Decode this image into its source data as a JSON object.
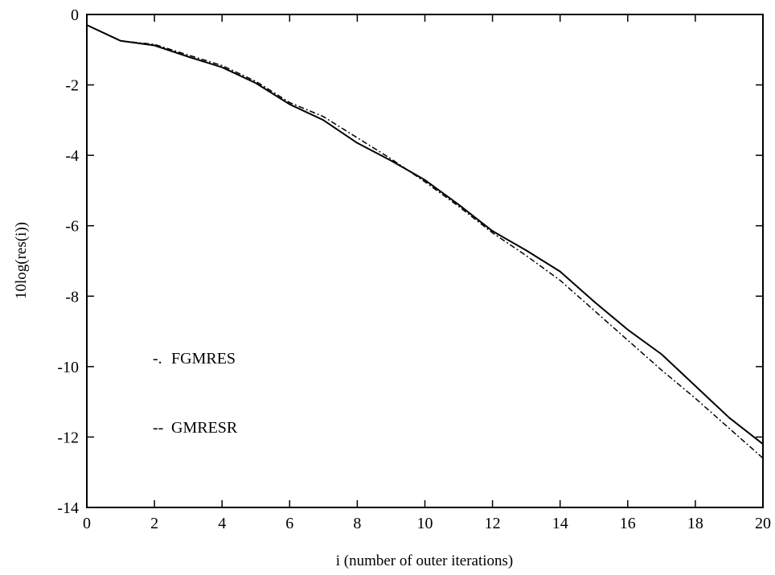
{
  "chart_data": {
    "type": "line",
    "title": "",
    "xlabel": "i  (number of outer iterations)",
    "ylabel": "10log(res(i))",
    "xlim": [
      0,
      20
    ],
    "ylim": [
      -14,
      0
    ],
    "xticks": [
      0,
      2,
      4,
      6,
      8,
      10,
      12,
      14,
      16,
      18,
      20
    ],
    "yticks": [
      0,
      -2,
      -4,
      -6,
      -8,
      -10,
      -12,
      -14
    ],
    "grid": false,
    "legend_position": "left",
    "series": [
      {
        "name": "FGMRES",
        "legend_marker": "-.",
        "line_style": "dashdot",
        "color": "#000000",
        "x": [
          0,
          1,
          2,
          3,
          4,
          5,
          6,
          7,
          8,
          9,
          10,
          11,
          12,
          13,
          14,
          15,
          16,
          17,
          18,
          19,
          20
        ],
        "y": [
          -0.3,
          -0.75,
          -0.85,
          -1.15,
          -1.45,
          -1.9,
          -2.5,
          -2.9,
          -3.5,
          -4.1,
          -4.75,
          -5.45,
          -6.2,
          -6.85,
          -7.55,
          -8.4,
          -9.25,
          -10.1,
          -10.9,
          -11.75,
          -12.6
        ]
      },
      {
        "name": "GMRESR",
        "legend_marker": "--",
        "line_style": "solid",
        "color": "#000000",
        "x": [
          0,
          1,
          2,
          3,
          4,
          5,
          6,
          7,
          8,
          9,
          10,
          11,
          12,
          13,
          14,
          15,
          16,
          17,
          18,
          19,
          20
        ],
        "y": [
          -0.3,
          -0.75,
          -0.88,
          -1.2,
          -1.5,
          -1.95,
          -2.55,
          -3.0,
          -3.65,
          -4.15,
          -4.7,
          -5.4,
          -6.15,
          -6.7,
          -7.3,
          -8.15,
          -8.95,
          -9.65,
          -10.55,
          -11.45,
          -12.2
        ]
      }
    ]
  }
}
